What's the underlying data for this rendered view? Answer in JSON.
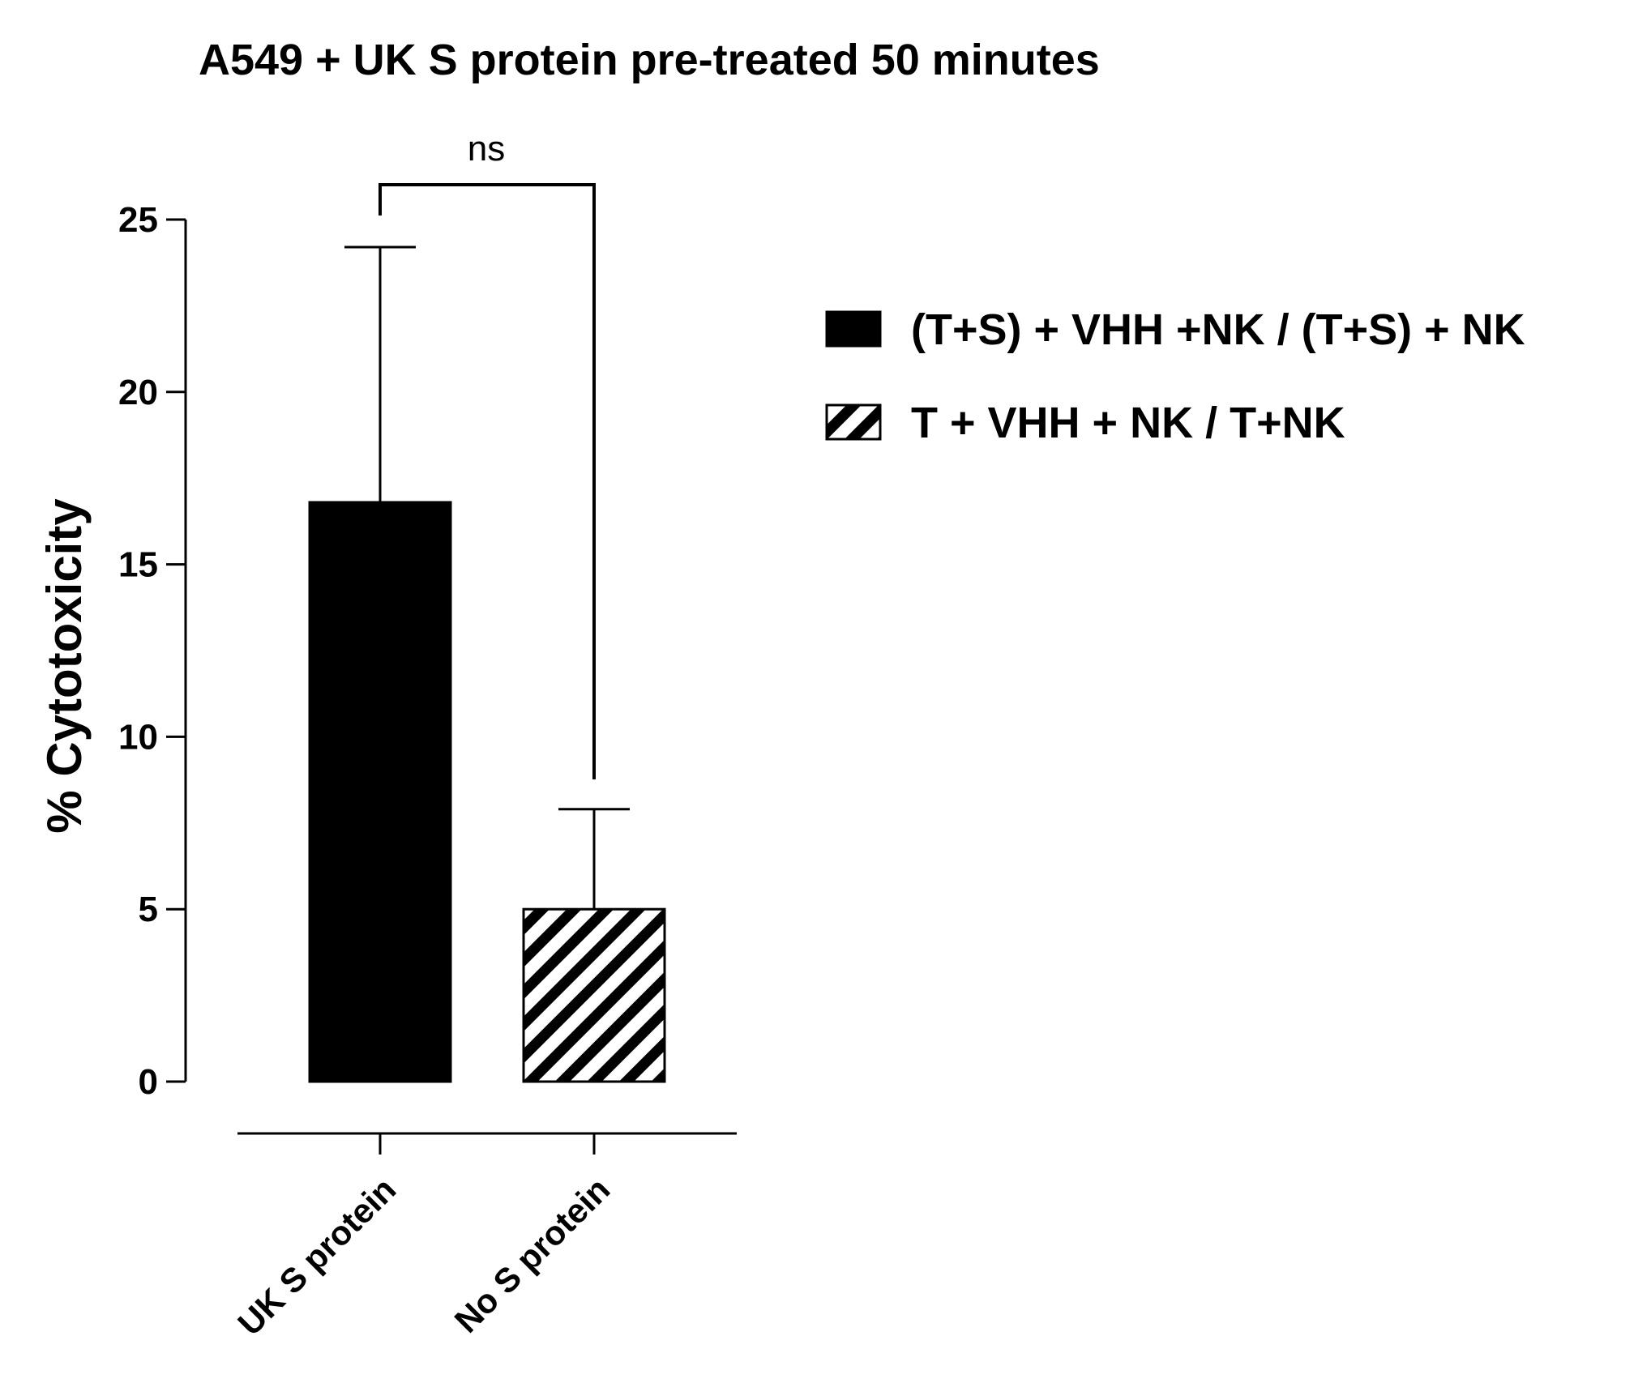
{
  "chart_data": {
    "type": "bar",
    "title": "A549 + UK S protein pre-treated 50 minutes",
    "xlabel": "",
    "ylabel": "% Cytotoxicity",
    "ylim": [
      0,
      25
    ],
    "yticks": [
      0,
      5,
      10,
      15,
      20,
      25
    ],
    "categories": [
      "UK S protein",
      "No S protein"
    ],
    "series": [
      {
        "name": "(T+S) + VHH +NK / (T+S) + NK",
        "category": "UK S protein",
        "value": 16.8,
        "error_upper": 24.2,
        "fill": "solid-black"
      },
      {
        "name": "T + VHH + NK / T+NK",
        "category": "No S protein",
        "value": 5.0,
        "error_upper": 7.9,
        "fill": "diagonal-hatch"
      }
    ],
    "significance": {
      "label": "ns",
      "between": [
        "UK S protein",
        "No S protein"
      ]
    },
    "legend_position": "right",
    "grid": false,
    "colors": {
      "bar": "#000000",
      "hatch": "#000000",
      "background": "#ffffff"
    }
  }
}
